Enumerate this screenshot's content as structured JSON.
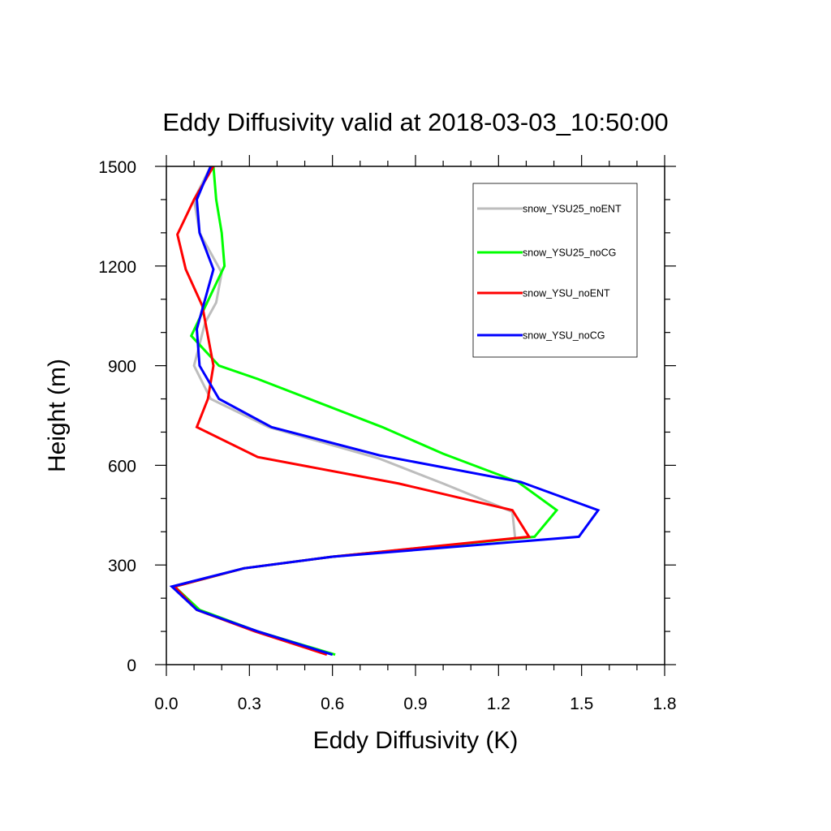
{
  "chart_data": {
    "type": "line",
    "title": "Eddy Diffusivity valid at 2018-03-03_10:50:00",
    "xlabel": "Eddy Diffusivity (K)",
    "ylabel": "Height (m)",
    "xlim": [
      0.0,
      1.8
    ],
    "ylim": [
      0,
      1500
    ],
    "xticks": [
      "0.0",
      "0.3",
      "0.6",
      "0.9",
      "1.2",
      "1.5",
      "1.8"
    ],
    "yticks": [
      "0",
      "300",
      "600",
      "900",
      "1200",
      "1500"
    ],
    "legend_position": "top-right",
    "grid": false,
    "series": [
      {
        "name": "snow_YSU25_noENT",
        "color": "#bdbdbd",
        "points": [
          [
            0.6,
            30
          ],
          [
            0.33,
            100
          ],
          [
            0.11,
            165
          ],
          [
            0.02,
            235
          ],
          [
            0.28,
            290
          ],
          [
            0.6,
            325
          ],
          [
            1.26,
            380
          ],
          [
            1.25,
            460
          ],
          [
            1.0,
            545
          ],
          [
            0.77,
            620
          ],
          [
            0.37,
            715
          ],
          [
            0.16,
            800
          ],
          [
            0.1,
            900
          ],
          [
            0.14,
            1030
          ],
          [
            0.18,
            1090
          ],
          [
            0.2,
            1180
          ],
          [
            0.12,
            1300
          ],
          [
            0.1,
            1400
          ],
          [
            0.16,
            1500
          ]
        ]
      },
      {
        "name": "snow_YSU25_noCG",
        "color": "#00ff00",
        "points": [
          [
            0.61,
            30
          ],
          [
            0.33,
            100
          ],
          [
            0.12,
            165
          ],
          [
            0.03,
            235
          ],
          [
            0.28,
            290
          ],
          [
            0.6,
            325
          ],
          [
            1.33,
            385
          ],
          [
            1.41,
            465
          ],
          [
            1.27,
            550
          ],
          [
            1.0,
            635
          ],
          [
            0.78,
            715
          ],
          [
            0.33,
            860
          ],
          [
            0.19,
            900
          ],
          [
            0.09,
            990
          ],
          [
            0.21,
            1200
          ],
          [
            0.2,
            1300
          ],
          [
            0.18,
            1400
          ],
          [
            0.17,
            1500
          ]
        ]
      },
      {
        "name": "snow_YSU_noENT",
        "color": "#ff0000",
        "points": [
          [
            0.58,
            30
          ],
          [
            0.32,
            100
          ],
          [
            0.11,
            165
          ],
          [
            0.03,
            235
          ],
          [
            0.28,
            290
          ],
          [
            0.6,
            325
          ],
          [
            1.31,
            385
          ],
          [
            1.25,
            465
          ],
          [
            0.84,
            545
          ],
          [
            0.33,
            625
          ],
          [
            0.11,
            715
          ],
          [
            0.15,
            800
          ],
          [
            0.17,
            900
          ],
          [
            0.13,
            1080
          ],
          [
            0.07,
            1190
          ],
          [
            0.04,
            1295
          ],
          [
            0.1,
            1400
          ],
          [
            0.17,
            1500
          ]
        ]
      },
      {
        "name": "snow_YSU_noCG",
        "color": "#0000ff",
        "points": [
          [
            0.6,
            30
          ],
          [
            0.33,
            100
          ],
          [
            0.11,
            165
          ],
          [
            0.02,
            235
          ],
          [
            0.28,
            290
          ],
          [
            0.6,
            325
          ],
          [
            1.49,
            385
          ],
          [
            1.56,
            465
          ],
          [
            1.28,
            550
          ],
          [
            0.77,
            630
          ],
          [
            0.38,
            715
          ],
          [
            0.19,
            800
          ],
          [
            0.12,
            900
          ],
          [
            0.11,
            1010
          ],
          [
            0.17,
            1190
          ],
          [
            0.12,
            1300
          ],
          [
            0.11,
            1400
          ],
          [
            0.16,
            1500
          ]
        ]
      }
    ]
  }
}
